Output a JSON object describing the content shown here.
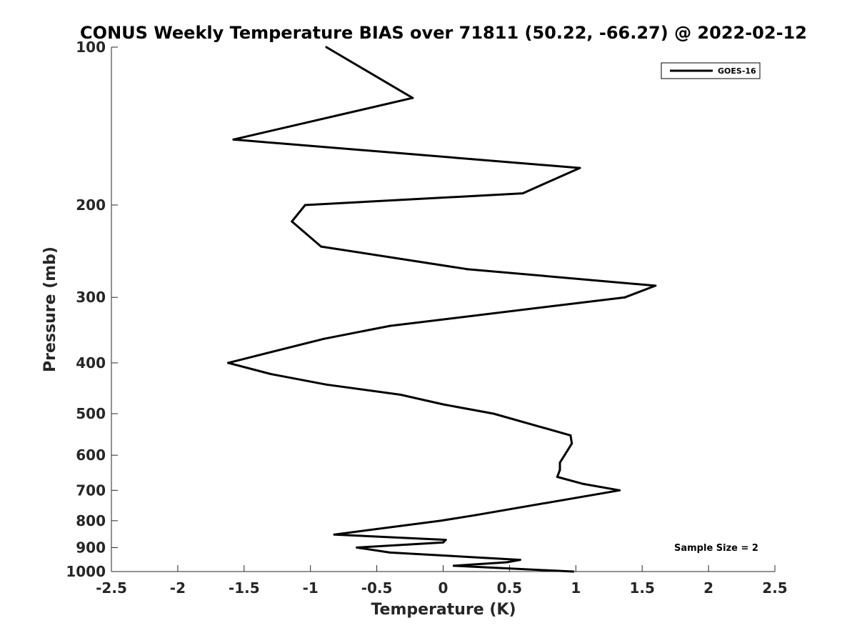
{
  "chart_data": {
    "type": "line",
    "title": "CONUS Weekly Temperature BIAS over 71811 (50.22, -66.27) @ 2022-02-12",
    "xlabel": "Temperature (K)",
    "ylabel": "Pressure (mb)",
    "xlim": [
      -2.5,
      2.5
    ],
    "ylim": [
      100,
      1000
    ],
    "y_scale": "log",
    "y_reversed": true,
    "grid": false,
    "legend_position": "top-right",
    "x_ticks": [
      -2.5,
      -2,
      -1.5,
      -1,
      -0.5,
      0,
      0.5,
      1,
      1.5,
      2,
      2.5
    ],
    "x_tick_labels": [
      "-2.5",
      "-2",
      "-1.5",
      "-1",
      "-0.5",
      "0",
      "0.5",
      "1",
      "1.5",
      "2",
      "2.5"
    ],
    "y_ticks": [
      100,
      200,
      300,
      400,
      500,
      600,
      700,
      800,
      900,
      1000
    ],
    "y_tick_labels": [
      "100",
      "200",
      "300",
      "400",
      "500",
      "600",
      "700",
      "800",
      "900",
      "1000"
    ],
    "series": [
      {
        "name": "GOES-16",
        "color": "#000000",
        "points": [
          {
            "x": -0.88,
            "p": 100
          },
          {
            "x": -0.23,
            "p": 125
          },
          {
            "x": -1.58,
            "p": 150
          },
          {
            "x": 1.03,
            "p": 170
          },
          {
            "x": 0.6,
            "p": 190
          },
          {
            "x": -1.04,
            "p": 200
          },
          {
            "x": -1.14,
            "p": 215
          },
          {
            "x": -0.92,
            "p": 240
          },
          {
            "x": 0.18,
            "p": 265
          },
          {
            "x": 1.6,
            "p": 285
          },
          {
            "x": 1.37,
            "p": 300
          },
          {
            "x": -0.4,
            "p": 340
          },
          {
            "x": -0.9,
            "p": 360
          },
          {
            "x": -1.62,
            "p": 400
          },
          {
            "x": -1.3,
            "p": 420
          },
          {
            "x": -0.88,
            "p": 440
          },
          {
            "x": -0.32,
            "p": 460
          },
          {
            "x": 0.0,
            "p": 480
          },
          {
            "x": 0.38,
            "p": 500
          },
          {
            "x": 0.96,
            "p": 550
          },
          {
            "x": 0.97,
            "p": 570
          },
          {
            "x": 0.88,
            "p": 620
          },
          {
            "x": 0.88,
            "p": 640
          },
          {
            "x": 0.86,
            "p": 660
          },
          {
            "x": 1.05,
            "p": 680
          },
          {
            "x": 1.33,
            "p": 700
          },
          {
            "x": 0.25,
            "p": 780
          },
          {
            "x": -0.02,
            "p": 800
          },
          {
            "x": -0.82,
            "p": 850
          },
          {
            "x": 0.02,
            "p": 870
          },
          {
            "x": 0.0,
            "p": 880
          },
          {
            "x": -0.65,
            "p": 900
          },
          {
            "x": -0.4,
            "p": 920
          },
          {
            "x": 0.58,
            "p": 950
          },
          {
            "x": 0.48,
            "p": 960
          },
          {
            "x": 0.08,
            "p": 975
          },
          {
            "x": 0.98,
            "p": 1000
          }
        ]
      }
    ],
    "annotations": [
      "Sample Size = 2"
    ]
  }
}
